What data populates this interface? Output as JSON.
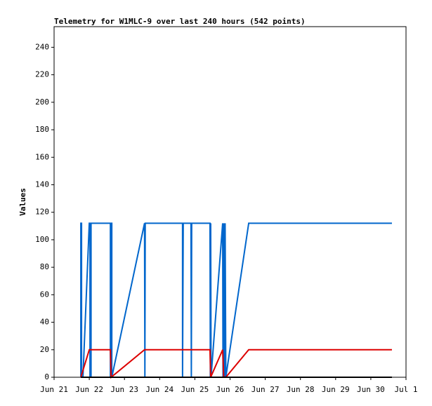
{
  "chart_data": {
    "type": "line",
    "title": "Telemetry for W1MLC-9 over last 240 hours (542 points)",
    "y_label": "Values",
    "xlim": [
      21,
      31
    ],
    "xticks": [
      {
        "value": 21,
        "label": "Jun 21"
      },
      {
        "value": 22,
        "label": "Jun 22"
      },
      {
        "value": 23,
        "label": "Jun 23"
      },
      {
        "value": 24,
        "label": "Jun 24"
      },
      {
        "value": 25,
        "label": "Jun 25"
      },
      {
        "value": 26,
        "label": "Jun 26"
      },
      {
        "value": 27,
        "label": "Jun 27"
      },
      {
        "value": 28,
        "label": "Jun 28"
      },
      {
        "value": 29,
        "label": "Jun 29"
      },
      {
        "value": 30,
        "label": "Jun 30"
      },
      {
        "value": 31,
        "label": "Jul 1"
      }
    ],
    "ylim": [
      0,
      255
    ],
    "yticks": [
      0,
      20,
      40,
      60,
      80,
      100,
      120,
      140,
      160,
      180,
      200,
      220,
      240
    ],
    "grid": false,
    "series": [
      {
        "color": "#0066cc",
        "x": [
          21.76,
          21.76,
          21.78,
          21.78,
          21.82,
          22.0,
          22.02,
          22.02,
          22.05,
          22.05,
          22.6,
          22.6,
          22.62,
          22.62,
          22.64,
          22.64,
          23.57,
          23.58,
          23.59,
          24.65,
          24.65,
          24.67,
          24.89,
          24.9,
          24.91,
          25.43,
          25.44,
          25.45,
          25.46,
          25.79,
          25.8,
          25.82,
          25.84,
          25.86,
          25.88,
          26.53,
          30.6
        ],
        "values": [
          0,
          112,
          112,
          0,
          0,
          112,
          112,
          0,
          0,
          112,
          112,
          0,
          0,
          112,
          112,
          0,
          112,
          0,
          112,
          112,
          0,
          112,
          112,
          0,
          112,
          112,
          0,
          112,
          0,
          112,
          0,
          112,
          0,
          112,
          0,
          112,
          112
        ]
      },
      {
        "color": "#dd0000",
        "x": [
          21.76,
          22.0,
          22.6,
          22.62,
          23.57,
          25.43,
          25.45,
          25.79,
          25.82,
          25.88,
          26.53,
          30.6
        ],
        "values": [
          0,
          20,
          20,
          0,
          20,
          20,
          0,
          20,
          0,
          0,
          20,
          20
        ]
      },
      {
        "color": "#000000",
        "x": [
          21.76,
          30.6
        ],
        "values": [
          0,
          0
        ]
      }
    ]
  }
}
